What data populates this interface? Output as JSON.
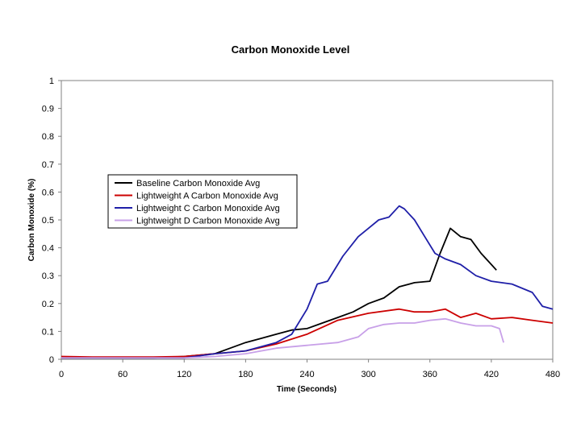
{
  "chart_data": {
    "type": "line",
    "title": "Carbon Monoxide Level",
    "xlabel": "Time (Seconds)",
    "ylabel": "Carbon Monoxide (%)",
    "xlim": [
      0,
      480
    ],
    "ylim": [
      0,
      1
    ],
    "xticks": [
      0,
      60,
      120,
      180,
      240,
      300,
      360,
      420,
      480
    ],
    "yticks": [
      0,
      0.1,
      0.2,
      0.3,
      0.4,
      0.5,
      0.6,
      0.7,
      0.8,
      0.9,
      1
    ],
    "ytick_labels": [
      "0",
      "0.1",
      "0.2",
      "0.3",
      "0.4",
      "0.5",
      "0.6",
      "0.7",
      "0.8",
      "0.9",
      "1"
    ],
    "grid": false,
    "legend_position": "center-left",
    "series": [
      {
        "name": "Baseline Carbon Monoxide Avg",
        "color": "#000000",
        "x": [
          0,
          30,
          60,
          90,
          120,
          150,
          165,
          180,
          195,
          210,
          225,
          240,
          255,
          270,
          285,
          300,
          315,
          330,
          345,
          360,
          370,
          380,
          390,
          400,
          410,
          420,
          425
        ],
        "y": [
          0.005,
          0.005,
          0.005,
          0.005,
          0.01,
          0.02,
          0.04,
          0.06,
          0.075,
          0.09,
          0.105,
          0.11,
          0.13,
          0.15,
          0.17,
          0.2,
          0.22,
          0.26,
          0.275,
          0.28,
          0.38,
          0.47,
          0.44,
          0.43,
          0.38,
          0.34,
          0.32
        ]
      },
      {
        "name": "Lightweight A Carbon Monoxide Avg",
        "color": "#cc0000",
        "x": [
          0,
          30,
          60,
          90,
          120,
          150,
          180,
          210,
          240,
          270,
          300,
          330,
          345,
          360,
          375,
          390,
          405,
          420,
          440,
          460,
          480
        ],
        "y": [
          0.01,
          0.008,
          0.008,
          0.008,
          0.01,
          0.02,
          0.03,
          0.055,
          0.09,
          0.14,
          0.165,
          0.18,
          0.17,
          0.17,
          0.18,
          0.15,
          0.165,
          0.145,
          0.15,
          0.14,
          0.13
        ]
      },
      {
        "name": "Lightweight C Carbon Monoxide Avg",
        "color": "#1f1fa8",
        "x": [
          0,
          30,
          60,
          90,
          120,
          150,
          180,
          210,
          225,
          240,
          250,
          260,
          275,
          290,
          300,
          310,
          320,
          330,
          335,
          345,
          355,
          365,
          375,
          390,
          405,
          420,
          440,
          460,
          470,
          480
        ],
        "y": [
          0.005,
          0.005,
          0.005,
          0.005,
          0.005,
          0.02,
          0.03,
          0.06,
          0.09,
          0.18,
          0.27,
          0.28,
          0.37,
          0.44,
          0.47,
          0.5,
          0.51,
          0.55,
          0.54,
          0.5,
          0.44,
          0.38,
          0.36,
          0.34,
          0.3,
          0.28,
          0.27,
          0.24,
          0.19,
          0.18
        ]
      },
      {
        "name": "Lightweight D Carbon Monoxide Avg",
        "color": "#c8a0e8",
        "x": [
          0,
          30,
          60,
          90,
          120,
          150,
          180,
          210,
          240,
          270,
          290,
          300,
          315,
          330,
          345,
          360,
          375,
          390,
          405,
          420,
          428,
          432
        ],
        "y": [
          0.005,
          0.005,
          0.005,
          0.005,
          0.005,
          0.01,
          0.02,
          0.04,
          0.05,
          0.06,
          0.08,
          0.11,
          0.125,
          0.13,
          0.13,
          0.14,
          0.145,
          0.13,
          0.12,
          0.12,
          0.11,
          0.06
        ]
      }
    ]
  }
}
